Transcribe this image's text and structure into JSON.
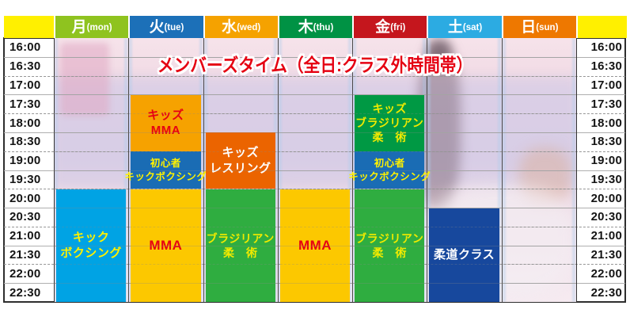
{
  "title": "メンバーズタイム（全日:クラス外時間帯）",
  "header": {
    "corner_color": "#FFF000",
    "days": [
      {
        "kanji": "月",
        "en": "(mon)",
        "name": "mon",
        "color": "#8FC31F"
      },
      {
        "kanji": "火",
        "en": "(tue)",
        "name": "tue",
        "color": "#1C70B8"
      },
      {
        "kanji": "水",
        "en": "(wed)",
        "name": "wed",
        "color": "#F5A200"
      },
      {
        "kanji": "木",
        "en": "(thu)",
        "name": "thu",
        "color": "#009244"
      },
      {
        "kanji": "金",
        "en": "(fri)",
        "name": "fri",
        "color": "#C5161D"
      },
      {
        "kanji": "土",
        "en": "(sat)",
        "name": "sat",
        "color": "#2CABE2"
      },
      {
        "kanji": "日",
        "en": "(sun)",
        "name": "sun",
        "color": "#EE7800"
      }
    ]
  },
  "time_labels": [
    "16:00",
    "16:30",
    "17:00",
    "17:30",
    "18:00",
    "18:30",
    "19:00",
    "19:30",
    "20:00",
    "20:30",
    "21:00",
    "21:30",
    "22:00",
    "22:30"
  ],
  "chart_data": {
    "type": "table",
    "title": "メンバーズタイム（全日:クラス外時間帯）",
    "columns": [
      "月(mon)",
      "火(tue)",
      "水(wed)",
      "木(thu)",
      "金(fri)",
      "土(sat)",
      "日(sun)"
    ],
    "time_axis": {
      "start": "16:00",
      "end": "23:00",
      "step_minutes": 30
    },
    "entries": [
      {
        "day": "月",
        "day_index": 0,
        "start": "20:00",
        "end": "23:00",
        "lines": [
          "キック",
          "ボクシング"
        ],
        "bg": "#00A3E4",
        "fg": "#FFF100"
      },
      {
        "day": "火",
        "day_index": 1,
        "start": "17:30",
        "end": "19:00",
        "lines": [
          "キッズ",
          "MMA"
        ],
        "bg": "#F6A200",
        "fg": "#E60012"
      },
      {
        "day": "火",
        "day_index": 1,
        "start": "19:00",
        "end": "20:00",
        "lines": [
          "初心者",
          "キックボクシング"
        ],
        "bg": "#1A6CB4",
        "fg": "#FFF100"
      },
      {
        "day": "火",
        "day_index": 1,
        "start": "20:00",
        "end": "23:00",
        "lines": [
          "MMA"
        ],
        "bg": "#FCC800",
        "fg": "#E60012"
      },
      {
        "day": "水",
        "day_index": 2,
        "start": "18:30",
        "end": "20:00",
        "lines": [
          "キッズ",
          "レスリング"
        ],
        "bg": "#EB6400",
        "fg": "#FFFFFF"
      },
      {
        "day": "水",
        "day_index": 2,
        "start": "20:00",
        "end": "23:00",
        "lines": [
          "ブラジリアン",
          "柔　術"
        ],
        "bg": "#2FAD40",
        "fg": "#F0EA00"
      },
      {
        "day": "木",
        "day_index": 3,
        "start": "20:00",
        "end": "23:00",
        "lines": [
          "MMA"
        ],
        "bg": "#FCC800",
        "fg": "#E60012"
      },
      {
        "day": "金",
        "day_index": 4,
        "start": "17:30",
        "end": "19:00",
        "lines": [
          "キッズ",
          "ブラジリアン",
          "柔　術"
        ],
        "bg": "#009944",
        "fg": "#F0EA00"
      },
      {
        "day": "金",
        "day_index": 4,
        "start": "19:00",
        "end": "20:00",
        "lines": [
          "初心者",
          "キックボクシング"
        ],
        "bg": "#1A6CB4",
        "fg": "#FFF100"
      },
      {
        "day": "金",
        "day_index": 4,
        "start": "20:00",
        "end": "23:00",
        "lines": [
          "ブラジリアン",
          "柔　術"
        ],
        "bg": "#2FAD40",
        "fg": "#F0EA00"
      },
      {
        "day": "土",
        "day_index": 5,
        "start": "20:30",
        "end": "23:00",
        "lines": [
          "柔道クラス"
        ],
        "bg": "#17489D",
        "fg": "#FFFFFF"
      }
    ]
  },
  "style_colors": {
    "title_red": "#E50012",
    "grid_line_solid": "#AFAFAF",
    "grid_line_dashed": "#969696",
    "table_border": "#2E2E2E",
    "time_label_text": "#141414"
  }
}
